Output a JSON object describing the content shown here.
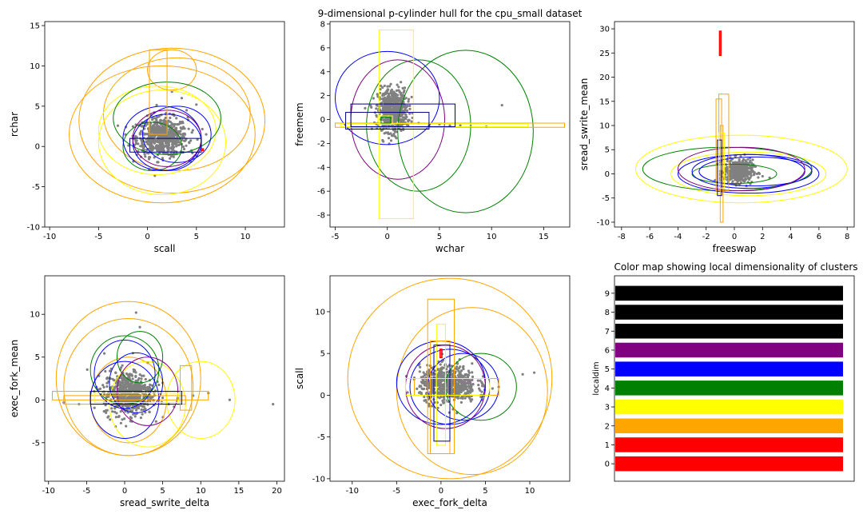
{
  "chart_data": [
    {
      "type": "scatter",
      "title": "",
      "xlabel": "scall",
      "ylabel": "rchar",
      "xlim": [
        -10.5,
        14
      ],
      "ylim": [
        -10,
        15.5
      ],
      "xticks": [
        -10,
        -5,
        0,
        5,
        10
      ],
      "yticks": [
        -10,
        -5,
        0,
        5,
        10,
        15
      ],
      "points": {
        "color": "#808080",
        "cx": 1.5,
        "cy": 1.2,
        "sx": 1.3,
        "sy": 1.2,
        "n": 650,
        "tail": [
          [
            4.0,
            4.5
          ],
          [
            5.0,
            5.2
          ],
          [
            3.5,
            6.0
          ],
          [
            -1.5,
            1.0
          ],
          [
            6.0,
            1.5
          ],
          [
            4.5,
            -0.5
          ],
          [
            2.5,
            6.8
          ]
        ]
      },
      "ellipses": [
        {
          "color": "orange",
          "cx": 2.5,
          "cy": 3.2,
          "rx": 9.5,
          "ry": 9.0
        },
        {
          "color": "orange",
          "cx": 3.0,
          "cy": 4.0,
          "rx": 7.5,
          "ry": 7.0
        },
        {
          "color": "orange",
          "cx": 1.5,
          "cy": 1.5,
          "rx": 9.5,
          "ry": 8.5
        },
        {
          "color": "orange",
          "cx": 2.5,
          "cy": 9.5,
          "rx": 2.5,
          "ry": 2.5
        },
        {
          "color": "yellow",
          "cx": 1.5,
          "cy": 0.5,
          "rx": 6.5,
          "ry": 6.5
        },
        {
          "color": "yellow",
          "cx": 1.0,
          "cy": 2.0,
          "rx": 6.0,
          "ry": 5.5
        },
        {
          "color": "green",
          "cx": 2.0,
          "cy": 3.5,
          "rx": 5.5,
          "ry": 4.5
        },
        {
          "color": "green",
          "cx": 0.5,
          "cy": 0.0,
          "rx": 3.0,
          "ry": 3.0
        },
        {
          "color": "blue",
          "cx": 1.5,
          "cy": 1.0,
          "rx": 4.0,
          "ry": 4.0
        },
        {
          "color": "blue",
          "cx": 2.0,
          "cy": 0.5,
          "rx": 3.5,
          "ry": 3.5
        },
        {
          "color": "blue",
          "cx": 3.0,
          "cy": 1.5,
          "rx": 3.5,
          "ry": 3.5
        },
        {
          "color": "purple",
          "cx": 2.0,
          "cy": 1.0,
          "rx": 3.5,
          "ry": 3.5
        }
      ],
      "rects": [
        {
          "color": "orange",
          "x0": 0.2,
          "x1": 2.0,
          "y0": 1.5,
          "y1": 12.0
        },
        {
          "color": "navy",
          "x0": -1.8,
          "x1": 5.5,
          "y0": -0.7,
          "y1": 1.0
        },
        {
          "color": "red",
          "x0": 5.5,
          "x1": 5.7,
          "y0": -0.5,
          "y1": -0.3
        }
      ]
    },
    {
      "type": "scatter",
      "title": "9-dimensional p-cylinder hull for the cpu_small dataset",
      "xlabel": "wchar",
      "ylabel": "freemem",
      "xlim": [
        -5.5,
        17.5
      ],
      "ylim": [
        -9,
        8.2
      ],
      "xticks": [
        -5,
        0,
        5,
        10,
        15
      ],
      "yticks": [
        -8,
        -6,
        -4,
        -2,
        0,
        2,
        4,
        6,
        8
      ],
      "points": {
        "color": "#808080",
        "cx": 0.5,
        "cy": 0.8,
        "sx": 0.7,
        "sy": 0.9,
        "n": 600,
        "tail": [
          [
            2,
            -0.5
          ],
          [
            4,
            -0.5
          ],
          [
            6,
            -0.5
          ],
          [
            8,
            -0.6
          ],
          [
            9.5,
            -0.6
          ],
          [
            11,
            1.2
          ],
          [
            3,
            -0.3
          ],
          [
            -1,
            -0.4
          ],
          [
            7,
            -0.5
          ],
          [
            5,
            -0.4
          ]
        ]
      },
      "ellipses": [
        {
          "color": "green",
          "cx": 7.5,
          "cy": -1.0,
          "rx": 6.5,
          "ry": 6.8
        },
        {
          "color": "green",
          "cx": 3.0,
          "cy": -0.5,
          "rx": 5.0,
          "ry": 5.5
        },
        {
          "color": "blue",
          "cx": 0.0,
          "cy": 1.8,
          "rx": 5.0,
          "ry": 3.9
        },
        {
          "color": "purple",
          "cx": 1.0,
          "cy": 0.0,
          "rx": 4.5,
          "ry": 5.0
        }
      ],
      "rects": [
        {
          "color": "yellow",
          "x0": -0.8,
          "x1": 2.5,
          "y0": -8.3,
          "y1": 7.5
        },
        {
          "color": "orange",
          "x0": -5.0,
          "x1": 17.0,
          "y0": -0.65,
          "y1": -0.3
        },
        {
          "color": "yellow",
          "x0": -4.5,
          "x1": 13.5,
          "y0": -0.6,
          "y1": -0.35
        },
        {
          "color": "navy",
          "x0": -4.0,
          "x1": 4.0,
          "y0": -0.8,
          "y1": 0.6
        },
        {
          "color": "navy",
          "x0": -3.5,
          "x1": 6.5,
          "y0": -0.6,
          "y1": 1.3
        },
        {
          "color": "green",
          "x0": -0.6,
          "x1": 0.3,
          "y0": -0.3,
          "y1": 0.2
        },
        {
          "color": "yellow",
          "x0": -0.9,
          "x1": 0.5,
          "y0": -0.4,
          "y1": 0.3
        }
      ]
    },
    {
      "type": "scatter",
      "title": "",
      "xlabel": "freeswap",
      "ylabel": "sread_swrite_mean",
      "xlim": [
        -8.5,
        8.5
      ],
      "ylim": [
        -11,
        31.5
      ],
      "xticks": [
        -8,
        -6,
        -4,
        -2,
        0,
        2,
        4,
        6,
        8
      ],
      "yticks": [
        -10,
        -5,
        0,
        5,
        10,
        15,
        20,
        25,
        30
      ],
      "points": {
        "color": "#808080",
        "cx": 0.3,
        "cy": 0.5,
        "sx": 0.5,
        "sy": 1.2,
        "n": 420,
        "tail": [
          [
            2.0,
            -0.5
          ],
          [
            2.5,
            -0.8
          ],
          [
            -0.5,
            3.0
          ],
          [
            1.5,
            1.5
          ],
          [
            -1.0,
            0.0
          ]
        ]
      },
      "ellipses": [
        {
          "color": "yellow",
          "cx": 0.5,
          "cy": 1.0,
          "rx": 7.5,
          "ry": 7.0
        },
        {
          "color": "yellow",
          "cx": 1.0,
          "cy": 0.0,
          "rx": 5.5,
          "ry": 4.5
        },
        {
          "color": "green",
          "cx": -0.5,
          "cy": 1.0,
          "rx": 6.0,
          "ry": 4.5
        },
        {
          "color": "green",
          "cx": 0.0,
          "cy": 0.0,
          "rx": 3.0,
          "ry": 2.0
        },
        {
          "color": "blue",
          "cx": 1.0,
          "cy": 0.0,
          "rx": 5.0,
          "ry": 4.0
        },
        {
          "color": "blue",
          "cx": 1.0,
          "cy": 0.5,
          "rx": 4.0,
          "ry": 3.5
        },
        {
          "color": "blue",
          "cx": 1.5,
          "cy": 0.5,
          "rx": 4.0,
          "ry": 3.0
        },
        {
          "color": "purple",
          "cx": 0.5,
          "cy": 1.0,
          "rx": 4.5,
          "ry": 4.5
        }
      ],
      "rects": [
        {
          "color": "orange",
          "x0": -1.1,
          "x1": -0.4,
          "y0": -3.5,
          "y1": 16.5
        },
        {
          "color": "orange",
          "x0": -1.3,
          "x1": -0.9,
          "y0": -3.5,
          "y1": 15.5
        },
        {
          "color": "orange",
          "x0": -1.0,
          "x1": -0.8,
          "y0": -10.0,
          "y1": 10.0
        },
        {
          "color": "navy",
          "x0": -1.2,
          "x1": -0.9,
          "y0": -4.5,
          "y1": 7.0
        },
        {
          "color": "yellow",
          "x0": -1.1,
          "x1": -0.7,
          "y0": -3.0,
          "y1": 8.5
        },
        {
          "color": "red",
          "x0": -1.05,
          "x1": -0.95,
          "y0": 24.5,
          "y1": 29.5
        }
      ]
    },
    {
      "type": "scatter",
      "title": "",
      "xlabel": "sread_swrite_delta",
      "ylabel": "exec_fork_mean",
      "xlim": [
        -10.5,
        21
      ],
      "ylim": [
        -9.5,
        14.5
      ],
      "xticks": [
        -10,
        -5,
        0,
        5,
        10,
        15,
        20
      ],
      "yticks": [
        -5,
        0,
        5,
        10
      ],
      "points": {
        "color": "#808080",
        "cx": 0.5,
        "cy": 0.8,
        "sx": 1.6,
        "sy": 1.3,
        "n": 620,
        "tail": [
          [
            19.5,
            -0.5
          ],
          [
            13.8,
            0.0
          ],
          [
            11.0,
            0.8
          ],
          [
            9.0,
            0.5
          ],
          [
            6.5,
            -0.8
          ],
          [
            2.0,
            8.5
          ],
          [
            1.5,
            10.2
          ],
          [
            -6.0,
            -0.5
          ],
          [
            -8.0,
            -0.3
          ],
          [
            -4.0,
            1.0
          ],
          [
            5.0,
            2.0
          ],
          [
            7.0,
            0.2
          ]
        ]
      },
      "ellipses": [
        {
          "color": "orange",
          "cx": 0.5,
          "cy": 2.5,
          "rx": 9.5,
          "ry": 9.0
        },
        {
          "color": "orange",
          "cx": 0.5,
          "cy": 1.5,
          "rx": 8.5,
          "ry": 8.0
        },
        {
          "color": "orange",
          "cx": 0.5,
          "cy": 0.0,
          "rx": 5.0,
          "ry": 5.0
        },
        {
          "color": "yellow",
          "cx": 10.0,
          "cy": 0.0,
          "rx": 4.5,
          "ry": 4.5
        },
        {
          "color": "yellow",
          "cx": 3.0,
          "cy": -0.5,
          "rx": 5.0,
          "ry": 5.0
        },
        {
          "color": "green",
          "cx": 2.0,
          "cy": 5.0,
          "rx": 3.0,
          "ry": 3.0
        },
        {
          "color": "green",
          "cx": 0.0,
          "cy": 3.5,
          "rx": 4.5,
          "ry": 4.0
        },
        {
          "color": "blue",
          "cx": 0.0,
          "cy": 3.0,
          "rx": 4.0,
          "ry": 4.0
        },
        {
          "color": "blue",
          "cx": 0.0,
          "cy": 0.0,
          "rx": 4.5,
          "ry": 4.5
        },
        {
          "color": "blue",
          "cx": 1.5,
          "cy": 2.0,
          "rx": 3.5,
          "ry": 3.5
        },
        {
          "color": "purple",
          "cx": 3.0,
          "cy": 1.0,
          "rx": 4.0,
          "ry": 4.0
        }
      ],
      "rects": [
        {
          "color": "orange",
          "x0": -9.5,
          "x1": 11.0,
          "y0": 0.0,
          "y1": 1.0
        },
        {
          "color": "orange",
          "x0": -8.0,
          "x1": 8.0,
          "y0": -0.5,
          "y1": 0.5
        },
        {
          "color": "navy",
          "x0": -4.5,
          "x1": 7.5,
          "y0": -0.5,
          "y1": 1.0
        },
        {
          "color": "orange",
          "x0": 7.3,
          "x1": 8.8,
          "y0": -1.2,
          "y1": 4.0
        },
        {
          "color": "yellow",
          "x0": -4.0,
          "x1": 7.0,
          "y0": -0.3,
          "y1": 0.8
        }
      ]
    },
    {
      "type": "scatter",
      "title": "",
      "xlabel": "exec_fork_delta",
      "ylabel": "scall",
      "xlim": [
        -12.5,
        14.5
      ],
      "ylim": [
        -10.3,
        14.3
      ],
      "xticks": [
        -10,
        -5,
        0,
        5,
        10
      ],
      "yticks": [
        -10,
        -5,
        0,
        5,
        10
      ],
      "points": {
        "color": "#808080",
        "cx": 0.8,
        "cy": 1.3,
        "sx": 1.6,
        "sy": 1.1,
        "n": 650,
        "tail": [
          [
            10.5,
            2.7
          ],
          [
            9.2,
            2.5
          ],
          [
            6.5,
            1.0
          ],
          [
            5.8,
            0.8
          ],
          [
            -1.8,
            2.5
          ],
          [
            3.5,
            3.8
          ],
          [
            4.5,
            0.0
          ]
        ]
      },
      "ellipses": [
        {
          "color": "orange",
          "cx": 1.0,
          "cy": 2.0,
          "rx": 11.5,
          "ry": 12.0
        },
        {
          "color": "orange",
          "cx": 3.5,
          "cy": 0.5,
          "rx": 8.5,
          "ry": 10.0
        },
        {
          "color": "green",
          "cx": 4.5,
          "cy": 1.0,
          "rx": 4.0,
          "ry": 4.0
        },
        {
          "color": "blue",
          "cx": 0.0,
          "cy": 1.5,
          "rx": 5.0,
          "ry": 5.0
        },
        {
          "color": "blue",
          "cx": 1.0,
          "cy": 1.0,
          "rx": 4.5,
          "ry": 4.5
        },
        {
          "color": "blue",
          "cx": 2.5,
          "cy": 1.0,
          "rx": 4.0,
          "ry": 4.0
        },
        {
          "color": "purple",
          "cx": 0.5,
          "cy": 1.0,
          "rx": 4.5,
          "ry": 5.0
        }
      ],
      "rects": [
        {
          "color": "orange",
          "x0": -1.5,
          "x1": 1.5,
          "y0": -7.0,
          "y1": 11.5
        },
        {
          "color": "orange",
          "x0": -1.2,
          "x1": 1.0,
          "y0": -7.0,
          "y1": 6.5
        },
        {
          "color": "yellow",
          "x0": -0.5,
          "x1": 0.5,
          "y0": -6.0,
          "y1": 8.5
        },
        {
          "color": "navy",
          "x0": -0.8,
          "x1": 1.0,
          "y0": -5.5,
          "y1": 6.0
        },
        {
          "color": "orange",
          "x0": -3.0,
          "x1": 6.5,
          "y0": 0.0,
          "y1": 2.0
        },
        {
          "color": "yellow",
          "x0": -4.0,
          "x1": 5.5,
          "y0": 0.0,
          "y1": 2.0
        },
        {
          "color": "red",
          "x0": -0.1,
          "x1": 0.1,
          "y0": 4.5,
          "y1": 5.5
        }
      ]
    },
    {
      "type": "bar",
      "orientation": "horizontal",
      "title": "Color map showing local dimensionality of clusters",
      "xlabel": "",
      "ylabel": "localdim",
      "categories": [
        "0",
        "1",
        "2",
        "3",
        "4",
        "5",
        "6",
        "7",
        "8",
        "9"
      ],
      "colors": [
        "#ff0000",
        "#ff0000",
        "#ffa500",
        "#ffff00",
        "#008000",
        "#0000ff",
        "#800080",
        "#000000",
        "#000000",
        "#000000"
      ],
      "values": [
        1,
        1,
        1,
        1,
        1,
        1,
        1,
        1,
        1,
        1
      ]
    }
  ]
}
